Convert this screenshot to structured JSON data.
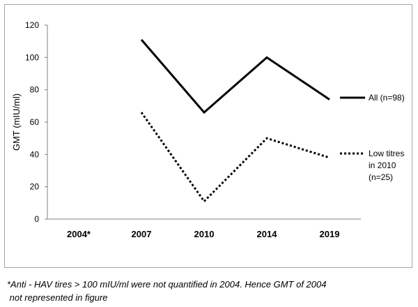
{
  "chart_data": {
    "type": "line",
    "categories": [
      "2004*",
      "2007",
      "2010",
      "2014",
      "2019"
    ],
    "series": [
      {
        "name": "All (n=98)",
        "values": [
          null,
          111,
          66,
          100,
          74
        ],
        "style": "solid",
        "color": "#000000"
      },
      {
        "name_lines": [
          "Low titres",
          "in 2010",
          "(n=25)"
        ],
        "values": [
          null,
          66,
          11,
          50,
          38
        ],
        "style": "dotted",
        "color": "#000000"
      }
    ],
    "title": "",
    "xlabel": "",
    "ylabel": "GMT (mIU/ml)",
    "ylim": [
      0,
      120
    ],
    "yticks": [
      0,
      20,
      40,
      60,
      80,
      100,
      120
    ],
    "grid": false,
    "legend": "right"
  },
  "footnote": {
    "line1": "*Anti - HAV tires > 100 mIU/ml were not quantified in 2004. Hence GMT of 2004",
    "line2": " not represented in figure"
  }
}
